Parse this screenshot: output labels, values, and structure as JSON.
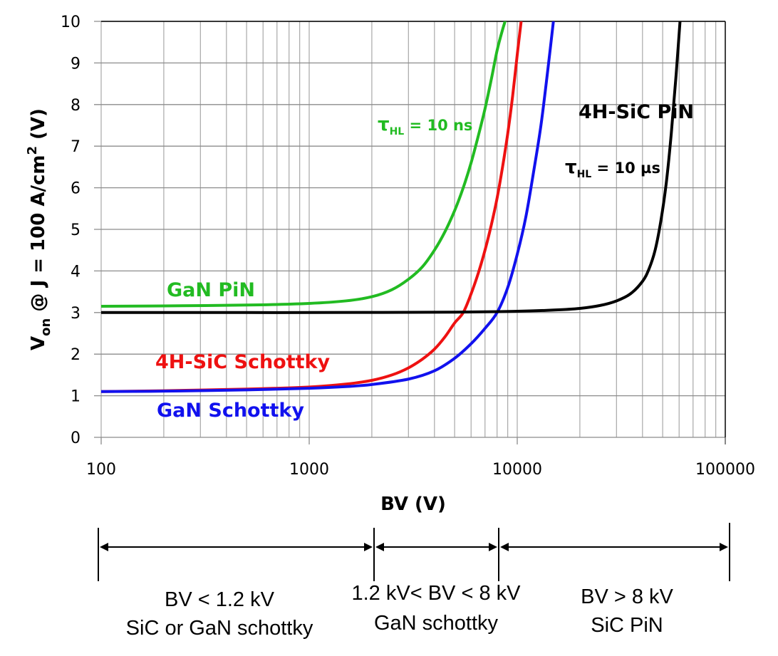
{
  "chart_data": {
    "type": "line",
    "title": "",
    "xlabel": "BV (V)",
    "ylabel_main": "V",
    "ylabel_sub": "on",
    "ylabel_rest": " @ J = 100 A/cm",
    "ylabel_sup": "2",
    "ylabel_end": " (V)",
    "xscale": "log",
    "xlim": [
      100,
      100000
    ],
    "ylim": [
      0,
      10
    ],
    "grid": true,
    "x_ticks": [
      100,
      1000,
      10000,
      100000
    ],
    "x_tick_labels": [
      "100",
      "1000",
      "10000",
      "100000"
    ],
    "y_ticks": [
      0,
      1,
      2,
      3,
      4,
      5,
      6,
      7,
      8,
      9,
      10
    ],
    "y_tick_labels": [
      "0",
      "1",
      "2",
      "3",
      "4",
      "5",
      "6",
      "7",
      "8",
      "9",
      "10"
    ],
    "series": [
      {
        "name": "GaN PiN",
        "color": "#22bb22",
        "x": [
          100,
          200,
          500,
          1000,
          1500,
          2000,
          2500,
          3000,
          3500,
          4000,
          4500,
          5000,
          5500,
          6000,
          6500,
          7000,
          7500,
          8000,
          8500,
          9000
        ],
        "y": [
          3.15,
          3.16,
          3.18,
          3.22,
          3.28,
          3.38,
          3.55,
          3.8,
          4.1,
          4.5,
          4.95,
          5.45,
          6.0,
          6.6,
          7.25,
          7.9,
          8.6,
          9.3,
          9.8,
          10.2
        ]
      },
      {
        "name": "4H-SiC Schottky",
        "color": "#ee1111",
        "x": [
          100,
          200,
          500,
          1000,
          1500,
          2000,
          2500,
          3000,
          3500,
          4000,
          4500,
          5000,
          5500,
          6000,
          6500,
          7000,
          7500,
          8000,
          8500,
          9000,
          9500,
          10000,
          10500
        ],
        "y": [
          1.1,
          1.12,
          1.16,
          1.21,
          1.28,
          1.37,
          1.5,
          1.67,
          1.88,
          2.12,
          2.42,
          2.75,
          3.0,
          3.45,
          3.95,
          4.5,
          5.1,
          5.75,
          6.5,
          7.3,
          8.2,
          9.2,
          10.1
        ]
      },
      {
        "name": "GaN Schottky",
        "color": "#1111ee",
        "x": [
          100,
          200,
          500,
          1000,
          1500,
          2000,
          3000,
          4000,
          5000,
          6000,
          7000,
          8000,
          9000,
          10000,
          11000,
          12000,
          13000,
          14000,
          15000
        ],
        "y": [
          1.1,
          1.11,
          1.14,
          1.18,
          1.22,
          1.27,
          1.4,
          1.6,
          1.9,
          2.25,
          2.62,
          3.0,
          3.6,
          4.4,
          5.3,
          6.4,
          7.5,
          8.8,
          10.1
        ]
      },
      {
        "name": "4H-SiC PiN",
        "color": "#000000",
        "x": [
          100,
          500,
          1000,
          5000,
          10000,
          15000,
          20000,
          25000,
          30000,
          35000,
          40000,
          43000,
          46000,
          49000,
          52000,
          55000,
          58000,
          61000
        ],
        "y": [
          3.0,
          3.0,
          3.0,
          3.01,
          3.03,
          3.06,
          3.1,
          3.17,
          3.28,
          3.45,
          3.75,
          4.05,
          4.5,
          5.2,
          6.1,
          7.3,
          8.7,
          10.2
        ]
      }
    ],
    "annotations": [
      {
        "text": "GaN PiN",
        "color": "#22bb22",
        "x": 300,
        "y": 3.55
      },
      {
        "text": "4H-SiC Schottky",
        "color": "#ee1111",
        "x": 340,
        "y": 1.8
      },
      {
        "text": "GaN Schottky",
        "color": "#1111ee",
        "x": 340,
        "y": 0.6
      },
      {
        "text": "4H-SiC PiN",
        "color": "#000000",
        "x": 45000,
        "y": 7.7
      }
    ],
    "lifetime_annotations": [
      {
        "symbol": "τ",
        "sub": "HL",
        "rest": " = 10 ns",
        "color": "#22bb22"
      },
      {
        "symbol": "τ",
        "sub": "HL",
        "rest": " = 10 µs",
        "color": "#000000"
      }
    ]
  },
  "regions": {
    "boundaries": [
      100,
      1200,
      8000,
      100000
    ],
    "labels": [
      {
        "line1": "BV < 1.2 kV",
        "line2": "SiC or GaN schottky"
      },
      {
        "line1": "1.2 kV< BV < 8 kV",
        "line2": "GaN schottky"
      },
      {
        "line1": "BV > 8 kV",
        "line2": "SiC PiN"
      }
    ]
  }
}
